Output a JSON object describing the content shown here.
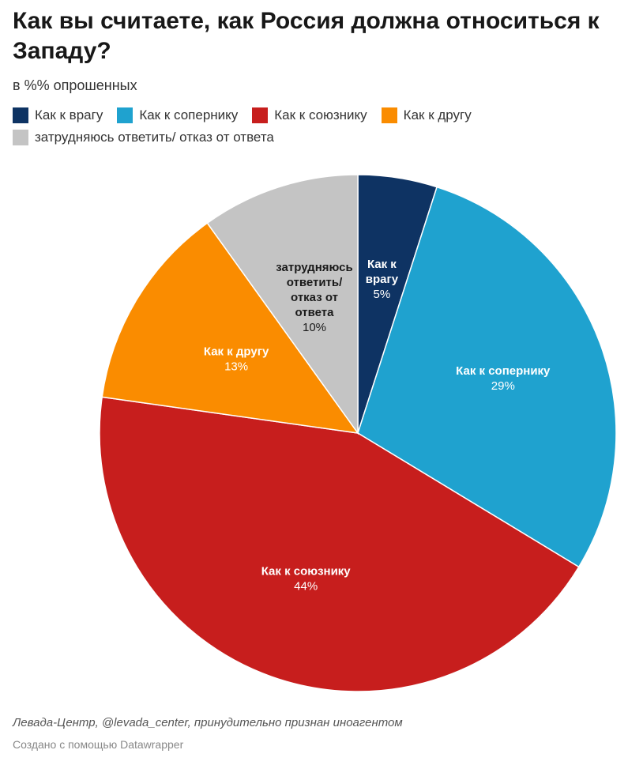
{
  "chart_data": {
    "type": "pie",
    "title": "Как вы считаете, как Россия должна относиться к Западу?",
    "subtitle": "в %% опрошенных",
    "legend_placement": "top",
    "slices": [
      {
        "name": "Как к врагу",
        "value": 5,
        "value_label": "5%",
        "label_lines": [
          "Как к",
          "врагу"
        ],
        "color": "#0e3363",
        "text_color": "#ffffff"
      },
      {
        "name": "Как к сопернику",
        "value": 29,
        "value_label": "29%",
        "label_lines": [
          "Как к сопернику"
        ],
        "color": "#1fa2cf",
        "text_color": "#ffffff"
      },
      {
        "name": "Как к союзнику",
        "value": 44,
        "value_label": "44%",
        "label_lines": [
          "Как к союзнику"
        ],
        "color": "#c71e1d",
        "text_color": "#ffffff"
      },
      {
        "name": "Как к другу",
        "value": 13,
        "value_label": "13%",
        "label_lines": [
          "Как к другу"
        ],
        "color": "#fa8c00",
        "text_color": "#ffffff"
      },
      {
        "name": "затрудняюсь ответить/ отказ от ответа",
        "value": 10,
        "value_label": "10%",
        "label_lines": [
          "затрудняюсь",
          "ответить/",
          "отказ от",
          "ответа"
        ],
        "color": "#c4c4c4",
        "text_color": "#1a1a1a"
      }
    ]
  },
  "footer": {
    "source": "Левада-Центр, @levada_center, принудительно признан иноагентом",
    "credit": "Создано с помощью Datawrapper"
  }
}
